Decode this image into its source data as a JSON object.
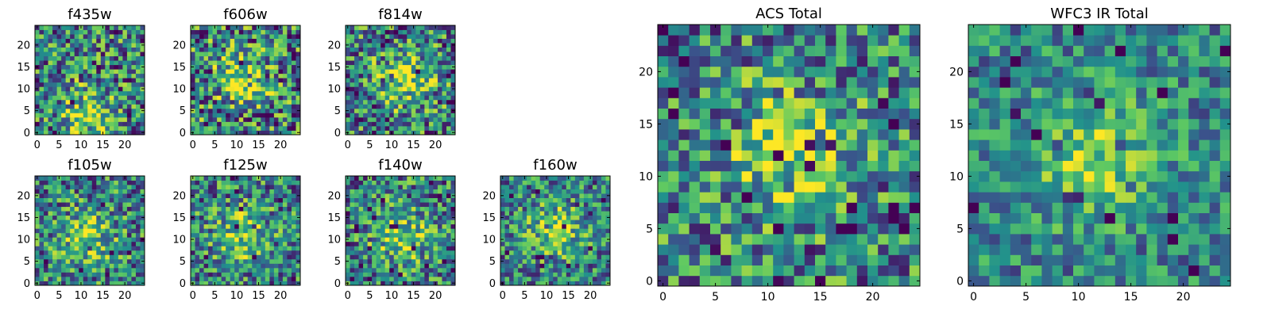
{
  "chart_data": {
    "type": "heatmap",
    "colormap": "viridis",
    "colors": [
      "#440154",
      "#3b528b",
      "#21918c",
      "#5ec962",
      "#fde725"
    ],
    "panels": [
      {
        "title": "f435w",
        "xlim": [
          0,
          25
        ],
        "ylim": [
          0,
          25
        ],
        "xticks": [
          0,
          5,
          10,
          15,
          20
        ],
        "yticks": [
          0,
          5,
          10,
          15,
          20
        ],
        "hot_spot": [
          11,
          4
        ],
        "texture": 0.55
      },
      {
        "title": "f606w",
        "xlim": [
          0,
          25
        ],
        "ylim": [
          0,
          25
        ],
        "xticks": [
          0,
          5,
          10,
          15,
          20
        ],
        "yticks": [
          0,
          5,
          10,
          15,
          20
        ],
        "hot_spot": [
          11,
          12
        ],
        "texture": 0.6
      },
      {
        "title": "f814w",
        "xlim": [
          0,
          25
        ],
        "ylim": [
          0,
          25
        ],
        "xticks": [
          0,
          5,
          10,
          15,
          20
        ],
        "yticks": [
          0,
          5,
          10,
          15,
          20
        ],
        "hot_spot": [
          13,
          12
        ],
        "texture": 0.55
      },
      {
        "title": "f105w",
        "xlim": [
          0,
          25
        ],
        "ylim": [
          0,
          25
        ],
        "xticks": [
          0,
          5,
          10,
          15,
          20
        ],
        "yticks": [
          0,
          5,
          10,
          15,
          20
        ],
        "hot_spot": [
          11,
          10
        ],
        "texture": 0.5
      },
      {
        "title": "f125w",
        "xlim": [
          0,
          25
        ],
        "ylim": [
          0,
          25
        ],
        "xticks": [
          0,
          5,
          10,
          15,
          20
        ],
        "yticks": [
          0,
          5,
          10,
          15,
          20
        ],
        "hot_spot": [
          11,
          11
        ],
        "texture": 0.5
      },
      {
        "title": "f140w",
        "xlim": [
          0,
          25
        ],
        "ylim": [
          0,
          25
        ],
        "xticks": [
          0,
          5,
          10,
          15,
          20
        ],
        "yticks": [
          0,
          5,
          10,
          15,
          20
        ],
        "hot_spot": [
          12,
          11
        ],
        "texture": 0.5
      },
      {
        "title": "f160w",
        "xlim": [
          0,
          25
        ],
        "ylim": [
          0,
          25
        ],
        "xticks": [
          0,
          5,
          10,
          15,
          20
        ],
        "yticks": [
          0,
          5,
          10,
          15,
          20
        ],
        "hot_spot": [
          12,
          12
        ],
        "texture": 0.45
      },
      {
        "title": "ACS Total",
        "xlim": [
          0,
          25
        ],
        "ylim": [
          0,
          25
        ],
        "xticks": [
          0,
          5,
          10,
          15,
          20
        ],
        "yticks": [
          0,
          5,
          10,
          15,
          20
        ],
        "hot_spot": [
          12,
          12
        ],
        "texture": 0.5
      },
      {
        "title": "WFC3 IR Total",
        "xlim": [
          0,
          25
        ],
        "ylim": [
          0,
          25
        ],
        "xticks": [
          0,
          5,
          10,
          15,
          20
        ],
        "yticks": [
          0,
          5,
          10,
          15,
          20
        ],
        "hot_spot": [
          12,
          12
        ],
        "texture": 0.35
      }
    ]
  }
}
